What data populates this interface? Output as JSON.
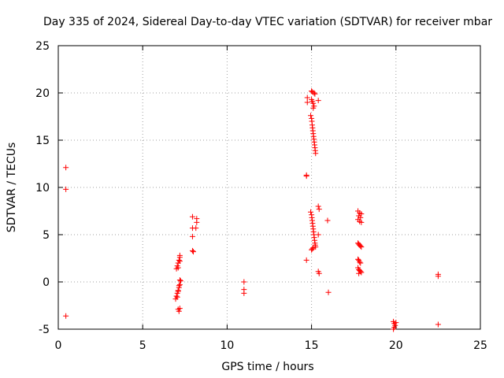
{
  "chart_data": {
    "type": "scatter",
    "title": "Day 335 of 2024, Sidereal Day-to-day VTEC variation (SDTVAR) for receiver mbar",
    "xlabel": "GPS time / hours",
    "ylabel": "SDTVAR / TECUs",
    "xlim": [
      0,
      25
    ],
    "ylim": [
      -5,
      25
    ],
    "xticks": [
      0,
      5,
      10,
      15,
      20,
      25
    ],
    "yticks": [
      -5,
      0,
      5,
      10,
      15,
      20,
      25
    ],
    "grid": true,
    "marker": "+",
    "color": "#ff0000",
    "series": [
      {
        "name": "SDTVAR",
        "points": [
          [
            0.45,
            12.1
          ],
          [
            0.45,
            9.8
          ],
          [
            0.45,
            -3.6
          ],
          [
            6.95,
            -1.8
          ],
          [
            7.0,
            -1.5
          ],
          [
            7.05,
            -1.2
          ],
          [
            7.1,
            -0.9
          ],
          [
            7.15,
            -0.6
          ],
          [
            7.05,
            -1.6
          ],
          [
            7.1,
            -1.0
          ],
          [
            7.1,
            -2.9
          ],
          [
            7.15,
            -3.1
          ],
          [
            7.2,
            -2.8
          ],
          [
            7.2,
            -0.3
          ],
          [
            7.25,
            0.1
          ],
          [
            7.2,
            0.2
          ],
          [
            7.15,
            -0.4
          ],
          [
            7.0,
            1.4
          ],
          [
            7.05,
            1.7
          ],
          [
            7.1,
            2.0
          ],
          [
            7.15,
            2.3
          ],
          [
            7.2,
            2.6
          ],
          [
            7.2,
            2.2
          ],
          [
            7.1,
            1.5
          ],
          [
            7.2,
            2.8
          ],
          [
            7.95,
            6.9
          ],
          [
            8.2,
            6.7
          ],
          [
            8.2,
            6.3
          ],
          [
            8.15,
            5.7
          ],
          [
            7.95,
            5.7
          ],
          [
            7.95,
            4.8
          ],
          [
            7.95,
            3.3
          ],
          [
            8.0,
            3.2
          ],
          [
            11.0,
            0.0
          ],
          [
            11.0,
            -0.8
          ],
          [
            11.0,
            -1.2
          ],
          [
            14.75,
            19.5
          ],
          [
            14.75,
            19.0
          ],
          [
            14.7,
            11.3
          ],
          [
            14.7,
            11.2
          ],
          [
            14.7,
            2.3
          ],
          [
            15.0,
            20.2
          ],
          [
            15.05,
            20.1
          ],
          [
            15.15,
            20.0
          ],
          [
            15.2,
            19.9
          ],
          [
            15.0,
            19.3
          ],
          [
            15.05,
            19.1
          ],
          [
            15.1,
            18.9
          ],
          [
            15.15,
            18.6
          ],
          [
            15.1,
            18.4
          ],
          [
            15.4,
            19.2
          ],
          [
            14.95,
            17.6
          ],
          [
            15.0,
            17.3
          ],
          [
            15.02,
            17.0
          ],
          [
            15.04,
            16.6
          ],
          [
            15.06,
            16.3
          ],
          [
            15.08,
            16.0
          ],
          [
            15.1,
            15.7
          ],
          [
            15.12,
            15.4
          ],
          [
            15.14,
            15.1
          ],
          [
            15.16,
            14.8
          ],
          [
            15.18,
            14.5
          ],
          [
            15.2,
            14.2
          ],
          [
            15.22,
            13.9
          ],
          [
            15.24,
            13.6
          ],
          [
            14.95,
            7.4
          ],
          [
            15.0,
            7.1
          ],
          [
            15.02,
            6.8
          ],
          [
            15.04,
            6.5
          ],
          [
            15.06,
            6.2
          ],
          [
            15.08,
            5.9
          ],
          [
            15.1,
            5.6
          ],
          [
            15.12,
            5.3
          ],
          [
            15.14,
            5.0
          ],
          [
            15.16,
            4.7
          ],
          [
            15.18,
            4.4
          ],
          [
            15.2,
            4.1
          ],
          [
            15.22,
            3.9
          ],
          [
            15.24,
            3.7
          ],
          [
            15.0,
            3.4
          ],
          [
            15.05,
            3.5
          ],
          [
            15.1,
            3.6
          ],
          [
            15.4,
            8.0
          ],
          [
            15.45,
            7.7
          ],
          [
            15.4,
            5.0
          ],
          [
            15.4,
            1.1
          ],
          [
            15.45,
            0.9
          ],
          [
            15.95,
            6.5
          ],
          [
            16.0,
            -1.1
          ],
          [
            17.75,
            7.5
          ],
          [
            17.85,
            7.3
          ],
          [
            17.95,
            7.2
          ],
          [
            17.8,
            7.0
          ],
          [
            17.9,
            6.8
          ],
          [
            17.75,
            6.6
          ],
          [
            17.85,
            6.4
          ],
          [
            17.95,
            6.3
          ],
          [
            17.75,
            4.1
          ],
          [
            17.8,
            4.0
          ],
          [
            17.85,
            3.9
          ],
          [
            17.9,
            3.8
          ],
          [
            17.95,
            3.7
          ],
          [
            17.75,
            2.4
          ],
          [
            17.8,
            2.3
          ],
          [
            17.85,
            2.1
          ],
          [
            17.9,
            2.0
          ],
          [
            17.75,
            1.5
          ],
          [
            17.8,
            1.3
          ],
          [
            17.85,
            1.2
          ],
          [
            17.9,
            1.1
          ],
          [
            17.95,
            1.0
          ],
          [
            17.8,
            0.9
          ],
          [
            19.85,
            -4.2
          ],
          [
            19.9,
            -4.4
          ],
          [
            19.95,
            -4.6
          ],
          [
            19.9,
            -4.8
          ],
          [
            19.85,
            -5.0
          ],
          [
            20.0,
            -4.3
          ],
          [
            22.5,
            0.8
          ],
          [
            22.5,
            0.6
          ],
          [
            22.5,
            -4.5
          ]
        ]
      }
    ]
  }
}
